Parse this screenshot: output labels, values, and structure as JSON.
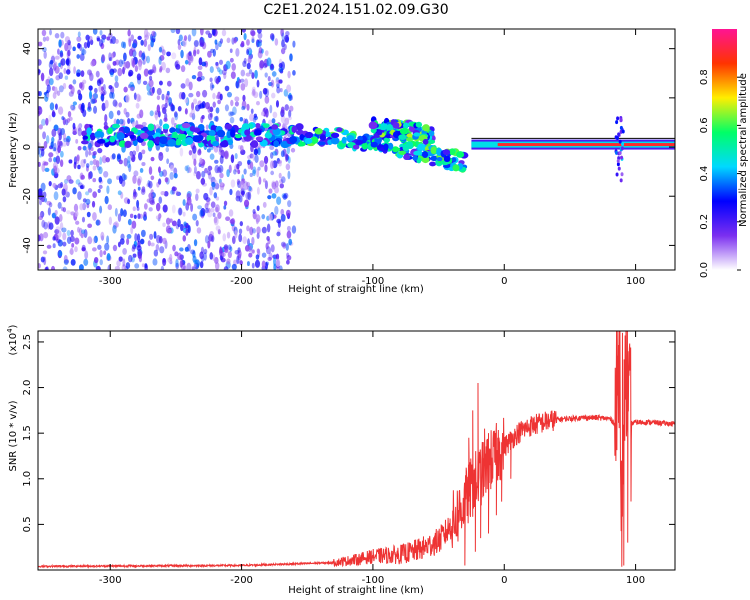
{
  "title": "C2E1.2024.151.02.09.G30",
  "colors": {
    "snr_line": "#ee3333",
    "spectrogram_scatter": "#7722ee",
    "colormap": [
      "#ffffff",
      "#7b2ff0",
      "#0000ff",
      "#00d9ff",
      "#00ff66",
      "#ffee00",
      "#ff3300",
      "#ff1493"
    ]
  },
  "chart_data": [
    {
      "type": "heatmap",
      "xlabel": "Height of straight line (km)",
      "ylabel": "Frequency (Hz)",
      "xlim": [
        -355,
        130
      ],
      "ylim": [
        -50,
        48
      ],
      "xticks": [
        -300,
        -200,
        -100,
        0,
        100
      ],
      "yticks": [
        40,
        20,
        0,
        -20,
        -40
      ],
      "colorbar": {
        "label": "Normalized spectral amplitude",
        "range": [
          0,
          1
        ],
        "ticks": [
          "0.0",
          "0.2",
          "0.4",
          "0.6",
          "0.8"
        ]
      },
      "features": [
        {
          "name": "broadband_noise",
          "x_range": [
            -355,
            -160
          ],
          "y_range": [
            -50,
            48
          ],
          "amplitude": 0.15
        },
        {
          "name": "tone_band",
          "x_range": [
            -320,
            -160
          ],
          "y_center": 5,
          "amplitude": 0.45
        },
        {
          "name": "descending_band",
          "x": [
            -165,
            -130,
            -100,
            -75,
            -50,
            -30
          ],
          "y": [
            5,
            4,
            2,
            -1,
            -4,
            -6
          ],
          "amplitude": 0.5
        },
        {
          "name": "upper_feature",
          "x": [
            -100,
            -85,
            -70,
            -55
          ],
          "y": [
            8,
            7,
            6,
            5
          ],
          "amplitude": 0.55
        },
        {
          "name": "stable_tone",
          "x_range": [
            -25,
            130
          ],
          "y_center": 1,
          "amplitude": 0.9
        },
        {
          "name": "spike",
          "x_center": 88,
          "y_range": [
            -15,
            15
          ],
          "amplitude": 0.35
        }
      ]
    },
    {
      "type": "line",
      "xlabel": "Height of straight line (km)",
      "ylabel": "SNR (10 * v/v)",
      "y_multiplier": "(x10",
      "y_multiplier_exp": "4",
      "y_multiplier_close": ")",
      "xlim": [
        -355,
        130
      ],
      "ylim": [
        0,
        2.62
      ],
      "xticks": [
        -300,
        -200,
        -100,
        0,
        100
      ],
      "yticks": [
        0.5,
        1.0,
        1.5,
        2.0,
        2.5
      ],
      "series": [
        {
          "x": [
            -355,
            -200,
            -130,
            -110,
            -100,
            -90,
            -80,
            -70,
            -60,
            -50,
            -45,
            -40,
            -35,
            -30,
            -25,
            -20,
            -15,
            -10,
            -5,
            0,
            10,
            20,
            30,
            40,
            50,
            60,
            70,
            80,
            85,
            88,
            90,
            92,
            95,
            100,
            110,
            120,
            130
          ],
          "y": [
            0.04,
            0.05,
            0.08,
            0.12,
            0.15,
            0.16,
            0.17,
            0.2,
            0.25,
            0.32,
            0.4,
            0.5,
            0.62,
            0.75,
            0.9,
            1.0,
            1.1,
            1.2,
            1.28,
            1.35,
            1.5,
            1.58,
            1.62,
            1.65,
            1.66,
            1.67,
            1.67,
            1.66,
            1.6,
            2.6,
            0.05,
            2.4,
            1.6,
            1.62,
            1.62,
            1.61,
            1.6
          ],
          "peaks": [
            [
              -27,
              1.45
            ],
            [
              -24,
              1.75
            ],
            [
              -20,
              2.05
            ],
            [
              -15,
              1.55
            ],
            [
              -12,
              1.5
            ],
            [
              -8,
              1.35
            ],
            [
              -5,
              1.45
            ],
            [
              -2,
              1.4
            ],
            [
              90,
              2.6
            ]
          ],
          "dips": [
            [
              -30,
              0.05
            ],
            [
              -22,
              0.2
            ],
            [
              -18,
              0.35
            ],
            [
              -12,
              0.4
            ],
            [
              -6,
              0.6
            ],
            [
              -2,
              0.75
            ],
            [
              5,
              1.0
            ],
            [
              91,
              0.05
            ],
            [
              94,
              0.3
            ]
          ]
        }
      ]
    }
  ]
}
